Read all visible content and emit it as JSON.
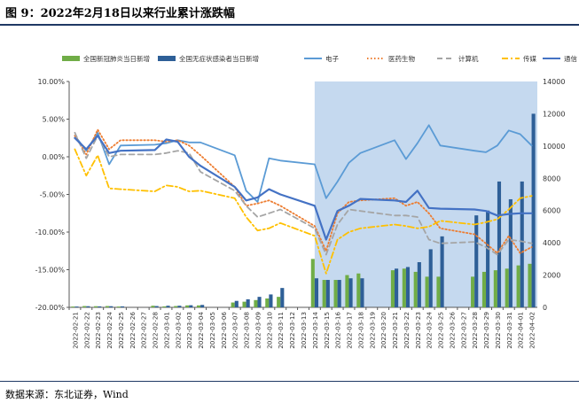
{
  "figure": {
    "title": "图 9：2022年2月18日以来行业累计涨跌幅",
    "source": "数据来源：东北证券，Wind"
  },
  "chart_data": {
    "type": "line",
    "xlabels": [
      "2022-02-21",
      "2022-02-22",
      "2022-02-23",
      "2022-02-24",
      "2022-02-25",
      "2022-02-26",
      "2022-02-27",
      "2022-02-28",
      "2022-03-01",
      "2022-03-02",
      "2022-03-03",
      "2022-03-04",
      "2022-03-05",
      "2022-03-06",
      "2022-03-07",
      "2022-03-08",
      "2022-03-09",
      "2022-03-10",
      "2022-03-11",
      "2022-03-12",
      "2022-03-13",
      "2022-03-14",
      "2022-03-15",
      "2022-03-16",
      "2022-03-17",
      "2022-03-18",
      "2022-03-19",
      "2022-03-20",
      "2022-03-21",
      "2022-03-22",
      "2022-03-23",
      "2022-03-24",
      "2022-03-25",
      "2022-03-26",
      "2022-03-27",
      "2022-03-28",
      "2022-03-29",
      "2022-03-30",
      "2022-03-31",
      "2022-04-01",
      "2022-04-02"
    ],
    "left_axis": {
      "min": -20,
      "max": 10,
      "ticks": [
        "10.00%",
        "5.00%",
        "0.00%",
        "-5.00%",
        "-10.00%",
        "-15.00%",
        "-20.00%"
      ]
    },
    "right_axis": {
      "min": 0,
      "max": 14000,
      "ticks": [
        "14000",
        "12000",
        "10000",
        "8000",
        "6000",
        "4000",
        "2000",
        "0"
      ]
    },
    "highlight": {
      "from": "2022-03-14",
      "to": "2022-04-02",
      "color": "#c5d9ef"
    },
    "series": [
      {
        "name": "全国新冠肺炎当日新增",
        "type": "bar",
        "axis": "right",
        "color": "#70ad47",
        "values": [
          50,
          80,
          70,
          80,
          50,
          null,
          null,
          100,
          60,
          80,
          120,
          120,
          null,
          null,
          300,
          350,
          450,
          550,
          650,
          null,
          null,
          3000,
          1700,
          1700,
          2000,
          2100,
          null,
          null,
          2300,
          2400,
          2200,
          1900,
          1900,
          null,
          null,
          1900,
          2200,
          2300,
          2400,
          2600,
          2700
        ]
      },
      {
        "name": "全国无症状感染者当日新增",
        "type": "bar",
        "axis": "right",
        "color": "#2e5f97",
        "values": [
          50,
          70,
          60,
          70,
          60,
          null,
          null,
          80,
          100,
          100,
          130,
          150,
          null,
          null,
          400,
          500,
          650,
          800,
          1200,
          null,
          null,
          1800,
          1700,
          1700,
          1800,
          1800,
          null,
          null,
          2400,
          2500,
          2800,
          3600,
          4400,
          null,
          null,
          5700,
          6000,
          7800,
          6700,
          7800,
          12000
        ]
      },
      {
        "name": "电子",
        "type": "line",
        "axis": "left",
        "color": "#5b9bd5",
        "dash": "solid",
        "values": [
          2.8,
          0.8,
          3.2,
          -1.0,
          1.5,
          null,
          null,
          1.6,
          1.8,
          2.2,
          1.9,
          1.9,
          null,
          null,
          0.2,
          -4.5,
          -6.0,
          -0.2,
          -0.5,
          null,
          null,
          -1.0,
          -5.5,
          -3.3,
          -0.8,
          0.5,
          null,
          null,
          2.2,
          -0.3,
          1.8,
          4.2,
          1.5,
          null,
          null,
          0.8,
          0.6,
          1.5,
          3.5,
          3.0,
          1.5
        ]
      },
      {
        "name": "医药生物",
        "type": "line",
        "axis": "left",
        "color": "#ed7d31",
        "dash": "dot",
        "values": [
          2.8,
          0.3,
          3.6,
          1.0,
          2.2,
          null,
          null,
          2.2,
          2.0,
          2.2,
          1.5,
          0.2,
          null,
          null,
          -4.0,
          -6.5,
          -6.2,
          -5.8,
          -6.5,
          null,
          null,
          -9.2,
          -12.5,
          -7.5,
          -6.0,
          -5.8,
          null,
          null,
          -5.5,
          -6.5,
          -6.0,
          -7.5,
          -9.5,
          null,
          null,
          -10.3,
          -11.5,
          -12.8,
          -10.5,
          -12.8,
          -12.0
        ]
      },
      {
        "name": "计算机",
        "type": "line",
        "axis": "left",
        "color": "#a5a5a5",
        "dash": "dash",
        "values": [
          3.2,
          -0.2,
          2.8,
          0.0,
          0.3,
          null,
          null,
          0.3,
          0.5,
          0.8,
          0.5,
          -2.0,
          null,
          null,
          -4.5,
          -6.5,
          -8.0,
          -7.5,
          -7.0,
          null,
          null,
          -9.5,
          -13.0,
          -9.0,
          -7.0,
          -7.2,
          null,
          null,
          -7.8,
          -7.8,
          -8.0,
          -11.0,
          -11.5,
          null,
          null,
          -11.3,
          -12.0,
          -13.0,
          -11.0,
          -11.2,
          -11.5
        ]
      },
      {
        "name": "传媒",
        "type": "line",
        "axis": "left",
        "color": "#ffc000",
        "dash": "dashdot",
        "values": [
          1.0,
          -2.5,
          0.2,
          -4.2,
          -4.3,
          null,
          null,
          -4.6,
          -3.8,
          -4.0,
          -4.6,
          -4.5,
          null,
          null,
          -5.5,
          -8.0,
          -9.8,
          -9.5,
          -8.8,
          null,
          null,
          -10.5,
          -15.5,
          -11.0,
          -10.0,
          -9.5,
          null,
          null,
          -9.0,
          -9.2,
          -9.5,
          -9.3,
          -8.5,
          null,
          null,
          -9.0,
          -8.7,
          -8.3,
          -7.0,
          -5.5,
          -5.2
        ]
      },
      {
        "name": "通信",
        "type": "line",
        "axis": "left",
        "color": "#4472c4",
        "dash": "solid",
        "width": 2.2,
        "values": [
          2.5,
          1.0,
          2.8,
          0.5,
          0.8,
          null,
          null,
          0.9,
          2.3,
          2.0,
          0.0,
          -1.2,
          null,
          null,
          -4.0,
          -5.8,
          -5.4,
          -4.3,
          -5.0,
          null,
          null,
          -6.5,
          -11.0,
          -7.2,
          -6.5,
          -5.6,
          null,
          null,
          -5.8,
          -6.0,
          -4.5,
          -6.8,
          -6.9,
          null,
          null,
          -7.0,
          -7.2,
          -7.8,
          -7.6,
          -7.5,
          -7.5
        ]
      }
    ]
  }
}
